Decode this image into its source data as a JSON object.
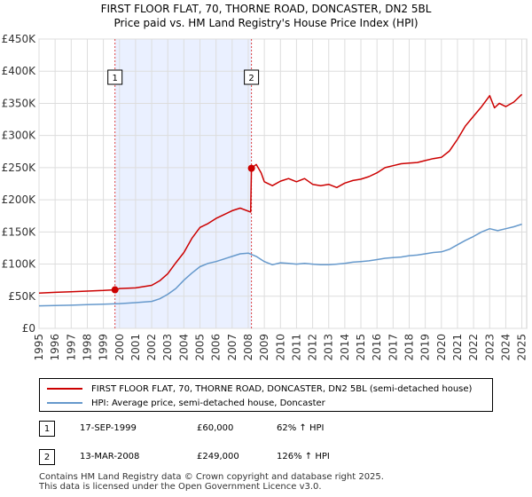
{
  "chart_data": {
    "type": "line",
    "title": "FIRST FLOOR FLAT, 70, THORNE ROAD, DONCASTER, DN2 5BL",
    "subtitle": "Price paid vs. HM Land Registry's House Price Index (HPI)",
    "xlabel": "",
    "ylabel": "",
    "xlim": [
      1995,
      2025.3
    ],
    "ylim": [
      0,
      450000
    ],
    "y_ticks": [
      0,
      50000,
      100000,
      150000,
      200000,
      250000,
      300000,
      350000,
      400000,
      450000
    ],
    "y_tick_labels": [
      "£0",
      "£50K",
      "£100K",
      "£150K",
      "£200K",
      "£250K",
      "£300K",
      "£350K",
      "£400K",
      "£450K"
    ],
    "x_ticks": [
      1995,
      1996,
      1997,
      1998,
      1999,
      2000,
      2001,
      2002,
      2003,
      2004,
      2005,
      2006,
      2007,
      2008,
      2009,
      2010,
      2011,
      2012,
      2013,
      2014,
      2015,
      2016,
      2017,
      2018,
      2019,
      2020,
      2021,
      2022,
      2023,
      2024,
      2025
    ],
    "x_tick_labels": [
      "1995",
      "1996",
      "1997",
      "1998",
      "1999",
      "2000",
      "2001",
      "2002",
      "2003",
      "2004",
      "2005",
      "2006",
      "2007",
      "2008",
      "2009",
      "2010",
      "2011",
      "2012",
      "2013",
      "2014",
      "2015",
      "2016",
      "2017",
      "2018",
      "2019",
      "2020",
      "2021",
      "2022",
      "2023",
      "2024",
      "2025"
    ],
    "grid": true,
    "shaded_span": [
      1999.72,
      2008.2
    ],
    "event_markers": [
      {
        "label": "1",
        "x": 1999.72
      },
      {
        "label": "2",
        "x": 2008.2
      }
    ],
    "sale_points": [
      {
        "x": 1999.72,
        "y": 60000
      },
      {
        "x": 2008.2,
        "y": 249000
      }
    ],
    "series": [
      {
        "name": "FIRST FLOOR FLAT, 70, THORNE ROAD, DONCASTER, DN2 5BL (semi-detached house)",
        "color": "#cc0000",
        "x": [
          1995,
          1996,
          1997,
          1998,
          1999,
          1999.72,
          2000,
          2001,
          2002,
          2002.5,
          2003,
          2003.5,
          2004,
          2004.5,
          2005,
          2005.5,
          2006,
          2006.5,
          2007,
          2007.5,
          2008.15,
          2008.2,
          2008.5,
          2008.8,
          2009,
          2009.5,
          2010,
          2010.5,
          2011,
          2011.5,
          2012,
          2012.5,
          2013,
          2013.5,
          2014,
          2014.5,
          2015,
          2015.5,
          2016,
          2016.5,
          2017,
          2017.5,
          2018,
          2018.5,
          2019,
          2019.5,
          2020,
          2020.5,
          2021,
          2021.5,
          2022,
          2022.5,
          2023,
          2023.3,
          2023.6,
          2024,
          2024.5,
          2025
        ],
        "y": [
          55000,
          56000,
          57000,
          58000,
          59000,
          60000,
          62000,
          63000,
          67000,
          74000,
          85000,
          102000,
          118000,
          140000,
          157000,
          163000,
          171000,
          177000,
          183000,
          187000,
          181000,
          249000,
          255000,
          242000,
          228000,
          222000,
          229000,
          233000,
          228000,
          233000,
          224000,
          222000,
          224000,
          219000,
          226000,
          230000,
          232000,
          236000,
          242000,
          250000,
          253000,
          256000,
          257000,
          258000,
          261000,
          264000,
          266000,
          276000,
          294000,
          315000,
          330000,
          345000,
          362000,
          343000,
          350000,
          345000,
          352000,
          364000
        ]
      },
      {
        "name": "HPI: Average price, semi-detached house, Doncaster",
        "color": "#6699cc",
        "x": [
          1995,
          1996,
          1997,
          1998,
          1999,
          2000,
          2001,
          2002,
          2002.5,
          2003,
          2003.5,
          2004,
          2004.5,
          2005,
          2005.5,
          2006,
          2006.5,
          2007,
          2007.5,
          2008,
          2008.5,
          2009,
          2009.5,
          2010,
          2010.5,
          2011,
          2011.5,
          2012,
          2012.5,
          2013,
          2013.5,
          2014,
          2014.5,
          2015,
          2015.5,
          2016,
          2016.5,
          2017,
          2017.5,
          2018,
          2018.5,
          2019,
          2019.5,
          2020,
          2020.5,
          2021,
          2021.5,
          2022,
          2022.5,
          2023,
          2023.5,
          2024,
          2024.5,
          2025
        ],
        "y": [
          35000,
          35500,
          36000,
          37000,
          37500,
          38500,
          40000,
          42000,
          46000,
          53000,
          62000,
          75000,
          86000,
          96000,
          101000,
          104000,
          108000,
          112000,
          116000,
          117000,
          112000,
          104000,
          99000,
          102000,
          101000,
          100000,
          101000,
          100000,
          99000,
          99000,
          100000,
          101000,
          103000,
          104000,
          105000,
          107000,
          109000,
          110000,
          111000,
          113000,
          114000,
          116000,
          118000,
          119000,
          123000,
          130000,
          137000,
          143000,
          150000,
          155000,
          152000,
          155000,
          158000,
          162000
        ]
      }
    ]
  },
  "legend": {
    "items": [
      {
        "label": "FIRST FLOOR FLAT, 70, THORNE ROAD, DONCASTER, DN2 5BL (semi-detached house)",
        "color": "#cc0000"
      },
      {
        "label": "HPI: Average price, semi-detached house, Doncaster",
        "color": "#6699cc"
      }
    ]
  },
  "sales": [
    {
      "marker": "1",
      "date": "17-SEP-1999",
      "price": "£60,000",
      "hpi_change": "62% ↑ HPI"
    },
    {
      "marker": "2",
      "date": "13-MAR-2008",
      "price": "£249,000",
      "hpi_change": "126% ↑ HPI"
    }
  ],
  "footer": {
    "line1": "Contains HM Land Registry data © Crown copyright and database right 2025.",
    "line2": "This data is licensed under the Open Government Licence v3.0."
  }
}
